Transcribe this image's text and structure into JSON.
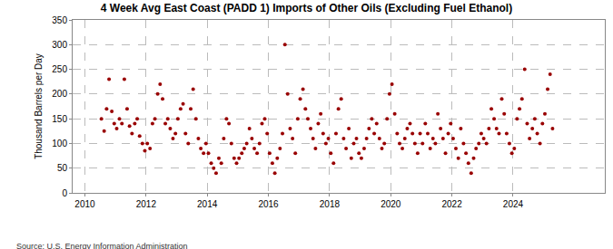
{
  "chart_data": {
    "type": "scatter",
    "title": "4 Week Avg East Coast (PADD 1) Imports of Other Oils (Excluding Fuel Ethanol)",
    "y_label": "Thousand Barrels per Day",
    "annotations": [
      "Source: U.S. Energy Information Administration"
    ],
    "marker": "circle",
    "color": "#990000",
    "grid": true,
    "xlim": [
      2009.6,
      2027
    ],
    "xticks": [
      2010,
      2012,
      2014,
      2016,
      2018,
      2020,
      2022,
      2024
    ],
    "ylim": [
      0,
      350
    ],
    "yticks": [
      0,
      50,
      100,
      150,
      200,
      250,
      300,
      350
    ],
    "x": [
      2010.54,
      2010.63,
      2010.71,
      2010.79,
      2010.88,
      2010.96,
      2011.04,
      2011.13,
      2011.21,
      2011.29,
      2011.38,
      2011.46,
      2011.54,
      2011.63,
      2011.71,
      2011.79,
      2011.88,
      2011.96,
      2012.04,
      2012.13,
      2012.21,
      2012.29,
      2012.38,
      2012.46,
      2012.54,
      2012.63,
      2012.71,
      2012.79,
      2012.88,
      2012.96,
      2013.04,
      2013.13,
      2013.21,
      2013.29,
      2013.38,
      2013.46,
      2013.54,
      2013.63,
      2013.71,
      2013.79,
      2013.88,
      2013.96,
      2014.04,
      2014.13,
      2014.21,
      2014.29,
      2014.38,
      2014.46,
      2014.54,
      2014.63,
      2014.71,
      2014.79,
      2014.88,
      2014.96,
      2015.04,
      2015.13,
      2015.21,
      2015.29,
      2015.38,
      2015.46,
      2015.54,
      2015.63,
      2015.71,
      2015.79,
      2015.88,
      2015.96,
      2016.04,
      2016.13,
      2016.21,
      2016.29,
      2016.38,
      2016.46,
      2016.54,
      2016.63,
      2016.71,
      2016.79,
      2016.88,
      2016.96,
      2017.04,
      2017.13,
      2017.21,
      2017.29,
      2017.38,
      2017.46,
      2017.54,
      2017.63,
      2017.71,
      2017.79,
      2017.88,
      2017.96,
      2018.04,
      2018.13,
      2018.21,
      2018.29,
      2018.38,
      2018.46,
      2018.54,
      2018.63,
      2018.71,
      2018.79,
      2018.88,
      2018.96,
      2019.04,
      2019.13,
      2019.21,
      2019.29,
      2019.38,
      2019.46,
      2019.54,
      2019.63,
      2019.71,
      2019.79,
      2019.88,
      2019.96,
      2020.04,
      2020.13,
      2020.21,
      2020.29,
      2020.38,
      2020.46,
      2020.54,
      2020.63,
      2020.71,
      2020.79,
      2020.88,
      2020.96,
      2021.04,
      2021.13,
      2021.21,
      2021.29,
      2021.38,
      2021.46,
      2021.54,
      2021.63,
      2021.71,
      2021.79,
      2021.88,
      2021.96,
      2022.04,
      2022.13,
      2022.21,
      2022.29,
      2022.38,
      2022.46,
      2022.54,
      2022.63,
      2022.71,
      2022.79,
      2022.88,
      2022.96,
      2023.04,
      2023.13,
      2023.21,
      2023.29,
      2023.38,
      2023.46,
      2023.54,
      2023.63,
      2023.71,
      2023.79,
      2023.88,
      2023.96,
      2024.04,
      2024.13,
      2024.21,
      2024.29,
      2024.38,
      2024.46,
      2024.54,
      2024.63,
      2024.71,
      2024.79,
      2024.88,
      2024.96,
      2025.04,
      2025.13,
      2025.21,
      2025.29
    ],
    "values": [
      150,
      125,
      170,
      230,
      165,
      140,
      130,
      150,
      140,
      230,
      170,
      135,
      120,
      140,
      150,
      115,
      100,
      85,
      100,
      90,
      140,
      150,
      200,
      220,
      190,
      140,
      150,
      130,
      110,
      120,
      150,
      170,
      180,
      120,
      100,
      170,
      210,
      150,
      110,
      90,
      80,
      100,
      80,
      60,
      50,
      40,
      70,
      60,
      110,
      150,
      140,
      100,
      70,
      60,
      70,
      80,
      90,
      100,
      130,
      110,
      90,
      80,
      100,
      140,
      150,
      120,
      80,
      60,
      40,
      70,
      90,
      120,
      300,
      200,
      130,
      110,
      80,
      150,
      190,
      210,
      170,
      150,
      130,
      110,
      90,
      140,
      160,
      120,
      100,
      110,
      80,
      60,
      120,
      170,
      190,
      110,
      90,
      130,
      70,
      100,
      110,
      80,
      70,
      90,
      110,
      130,
      150,
      120,
      140,
      110,
      90,
      100,
      150,
      200,
      220,
      160,
      120,
      100,
      90,
      110,
      130,
      140,
      120,
      100,
      80,
      120,
      100,
      140,
      120,
      90,
      110,
      100,
      160,
      130,
      110,
      80,
      120,
      140,
      110,
      90,
      70,
      130,
      100,
      80,
      60,
      40,
      70,
      90,
      100,
      120,
      110,
      100,
      130,
      170,
      150,
      130,
      120,
      190,
      160,
      120,
      100,
      80,
      90,
      150,
      170,
      190,
      250,
      140,
      110,
      130,
      150,
      120,
      100,
      140,
      160,
      210,
      240,
      130
    ]
  }
}
